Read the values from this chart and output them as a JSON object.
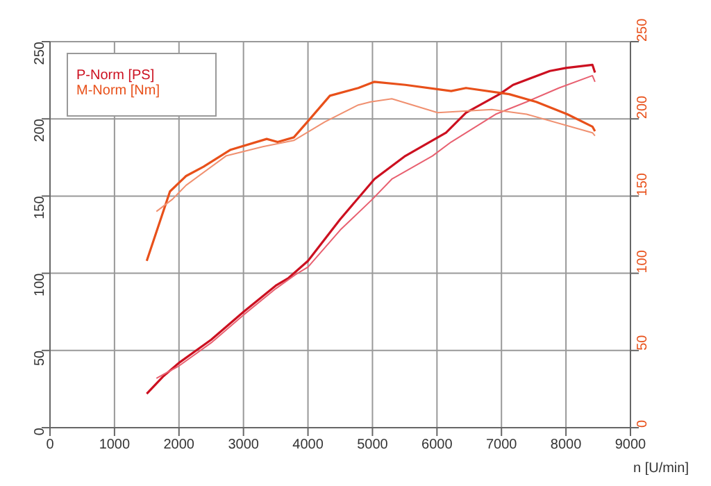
{
  "chart_data": {
    "type": "line",
    "xlabel": "n [U/min]",
    "xlim": [
      0,
      9000
    ],
    "xticks": [
      0,
      1000,
      2000,
      3000,
      4000,
      5000,
      6000,
      7000,
      8000,
      9000
    ],
    "ylim": [
      0,
      250
    ],
    "yticks": [
      0,
      50,
      100,
      150,
      200,
      250
    ],
    "y2lim": [
      0,
      250
    ],
    "y2ticks": [
      0,
      50,
      100,
      150,
      200,
      250
    ],
    "grid": true,
    "legend": "top left",
    "marker": "none",
    "line_style": "solid",
    "series": [
      {
        "name": "P-Norm [PS]",
        "color": "#cc1020",
        "x": [
          1500,
          1750,
          2000,
          2500,
          3000,
          3500,
          3700,
          4000,
          4500,
          5030,
          5510,
          6140,
          6450,
          6970,
          7180,
          7750,
          8000,
          8410,
          8450
        ],
        "values": [
          22,
          33,
          42,
          57,
          75,
          92,
          97,
          108,
          135,
          161,
          176,
          191,
          204,
          216,
          222,
          231,
          233,
          235,
          230
        ]
      },
      {
        "color": "#e86070",
        "x": [
          1650,
          2000,
          2500,
          3000,
          3500,
          3800,
          4000,
          4500,
          5000,
          5300,
          5930,
          6220,
          6910,
          7390,
          7890,
          8410,
          8450
        ],
        "values": [
          32,
          40,
          55,
          73,
          90,
          99,
          104,
          128,
          148,
          161,
          176,
          185,
          203,
          211,
          220,
          228,
          224
        ]
      },
      {
        "name": "M-Norm [Nm]",
        "color": "#e8501a",
        "axis": "y2",
        "x": [
          1500,
          1860,
          2110,
          2380,
          2800,
          3360,
          3530,
          3780,
          3990,
          4340,
          4780,
          5030,
          5510,
          6220,
          6450,
          7120,
          7540,
          8020,
          8410,
          8450
        ],
        "values": [
          108,
          153,
          163,
          169,
          180,
          187,
          185,
          188,
          198,
          215,
          220,
          224,
          222,
          218,
          220,
          216,
          211,
          203,
          195,
          192
        ]
      },
      {
        "color": "#f09070",
        "axis": "y2",
        "x": [
          1650,
          1900,
          2110,
          2730,
          3300,
          3780,
          4260,
          4780,
          4970,
          5300,
          6010,
          6850,
          7390,
          8410,
          8450
        ],
        "values": [
          140,
          148,
          157,
          176,
          182,
          186,
          198,
          209,
          211,
          213,
          204,
          206,
          203,
          191,
          189
        ]
      }
    ]
  }
}
